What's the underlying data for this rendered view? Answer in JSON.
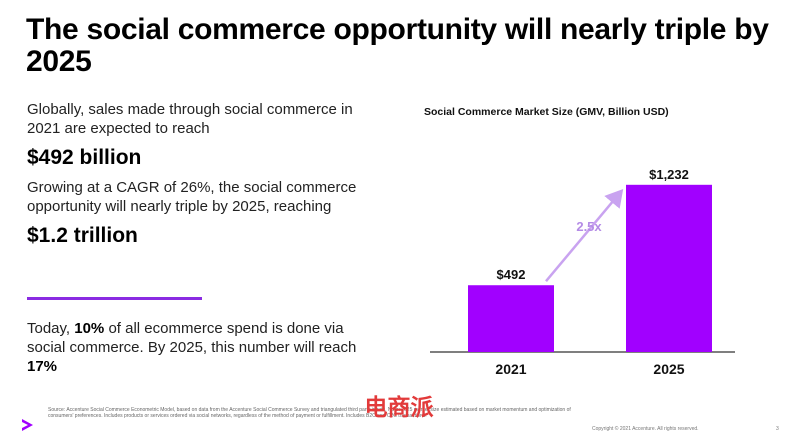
{
  "title": "The social commerce opportunity will nearly triple by 2025",
  "intro_text": "Globally, sales made through social commerce in 2021 are expected to reach",
  "highlight_2021": "$492 billion",
  "growth_text": "Growing at a CAGR of 26%, the social commerce opportunity will nearly triple by 2025, reaching",
  "highlight_2025": "$1.2 trillion",
  "share_text": {
    "part1": "Today, ",
    "pct_now": "10%",
    "part2": " of all ecommerce spend is done via social commerce. By 2025, this number will reach ",
    "pct_2025": "17%"
  },
  "colors": {
    "bar": "#a100ff",
    "arrow": "#c9a3f0",
    "multiplier_text": "#b48be6",
    "divider": "#8a2be2"
  },
  "chart_data": {
    "type": "bar",
    "title": "Social Commerce Market Size (GMV, Billion USD)",
    "categories": [
      "2021",
      "2025"
    ],
    "values": [
      492,
      1232
    ],
    "value_labels": [
      "$492",
      "$1,232"
    ],
    "annotation": "2.5x",
    "ylim": [
      0,
      1400
    ],
    "grid": false
  },
  "footnote": "Source: Accenture Social Commerce Econometric Model, based on data from the Accenture Social Commerce Survey and triangulated third party inputs. Note: 2025 market size estimated based on market momentum and optimization of consumers' preferences. Includes products or services ordered via social networks, regardless of the method of payment or fulfillment. Includes B2C and C2C transactions.",
  "copyright": "Copyright © 2021 Accenture. All rights reserved.",
  "page_number": "3",
  "watermark_text": "电商派",
  "logo_icon": "accenture-chevron-icon"
}
